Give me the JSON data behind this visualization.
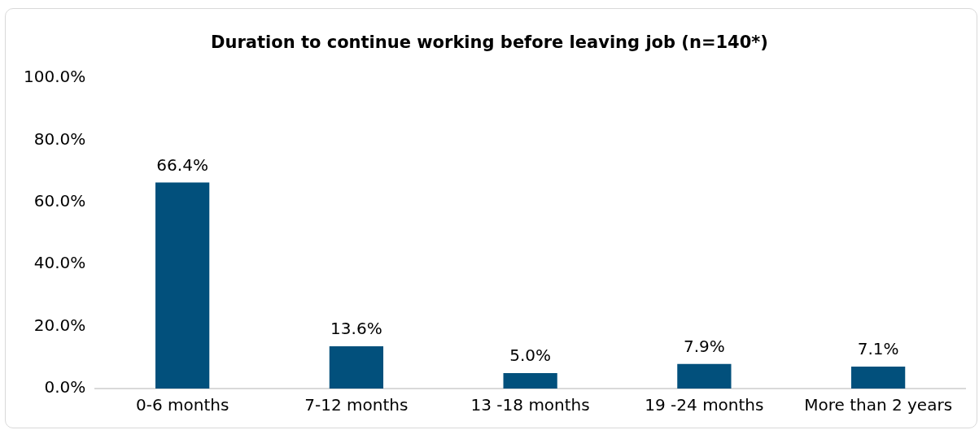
{
  "chart_data": {
    "type": "bar",
    "title": "Duration to continue working before leaving job (n=140*)",
    "categories": [
      "0-6 months",
      "7-12 months",
      "13 -18 months",
      "19 -24 months",
      "More than 2 years"
    ],
    "values": [
      66.4,
      13.6,
      5.0,
      7.9,
      7.1
    ],
    "value_labels": [
      "66.4%",
      "13.6%",
      "5.0%",
      "7.9%",
      "7.1%"
    ],
    "color": "#02507c",
    "ylim": [
      0,
      100
    ],
    "yticks": [
      {
        "value": 0,
        "label": "0.0%"
      },
      {
        "value": 20,
        "label": "20.0%"
      },
      {
        "value": 40,
        "label": "40.0%"
      },
      {
        "value": 60,
        "label": "60.0%"
      },
      {
        "value": 80,
        "label": "80.0%"
      },
      {
        "value": 100,
        "label": "100.0%"
      }
    ],
    "grid": false,
    "legend": false
  }
}
